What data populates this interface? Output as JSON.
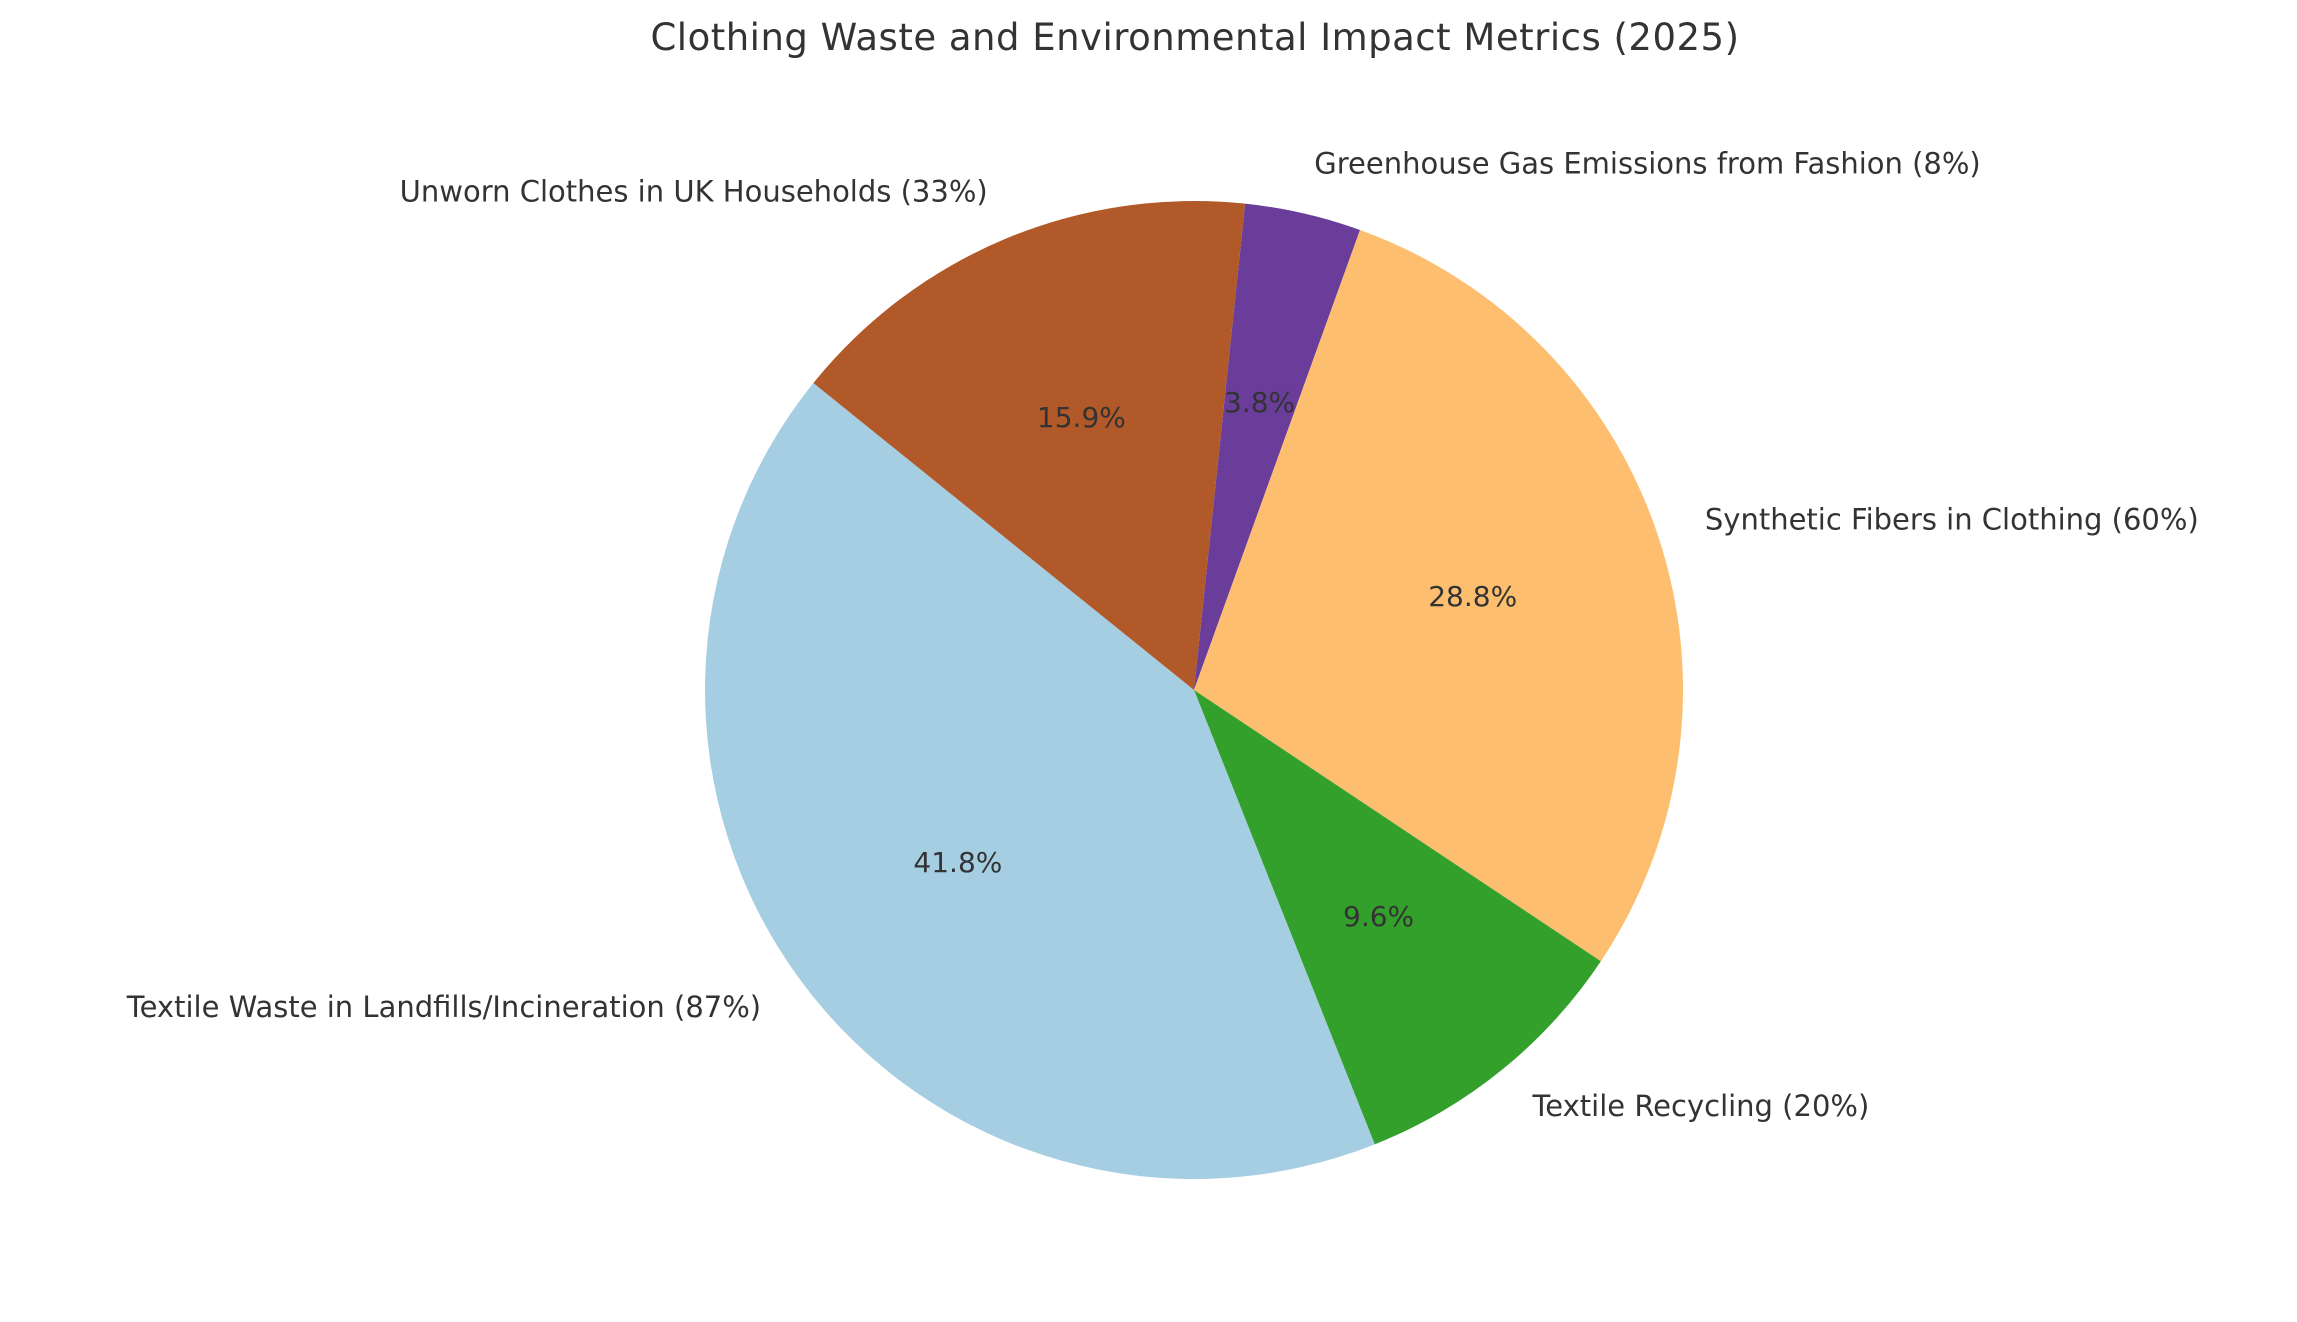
{
  "title": "Clothing Waste and Environmental Impact Metrics (2025)",
  "colors": {
    "background": "#ffffff",
    "text_color": "#333333"
  },
  "chart_data": {
    "type": "pie",
    "title": "Clothing Waste and Environmental Impact Metrics (2025)",
    "categories": [
      "Greenhouse Gas Emissions from Fashion (8%)",
      "Synthetic Fibers in Clothing (60%)",
      "Textile Recycling (20%)",
      "Textile Waste in Landfills/Incineration (87%)",
      "Unworn Clothes in UK Households (33%)"
    ],
    "values": [
      8,
      60,
      20,
      87,
      33
    ],
    "displayed_percentages": [
      "3.8%",
      "28.8%",
      "9.6%",
      "41.8%",
      "15.9%"
    ],
    "legend_position": "none",
    "start_angle_deg": 84,
    "direction": "clockwise",
    "label_distance_ratio": 1.1,
    "pct_distance_ratio": 0.6,
    "slices": [
      {
        "label": "Greenhouse Gas Emissions from Fashion (8%)",
        "value": 8,
        "pct_label": "3.8%",
        "color": "#6a3d9a"
      },
      {
        "label": "Synthetic Fibers in Clothing (60%)",
        "value": 60,
        "pct_label": "28.8%",
        "color": "#fdbf6f"
      },
      {
        "label": "Textile Recycling (20%)",
        "value": 20,
        "pct_label": "9.6%",
        "color": "#33a02c"
      },
      {
        "label": "Textile Waste in Landfills/Incineration (87%)",
        "value": 87,
        "pct_label": "41.8%",
        "color": "#a6cee3"
      },
      {
        "label": "Unworn Clothes in UK Households (33%)",
        "value": 33,
        "pct_label": "15.9%",
        "color": "#b15928"
      }
    ]
  }
}
